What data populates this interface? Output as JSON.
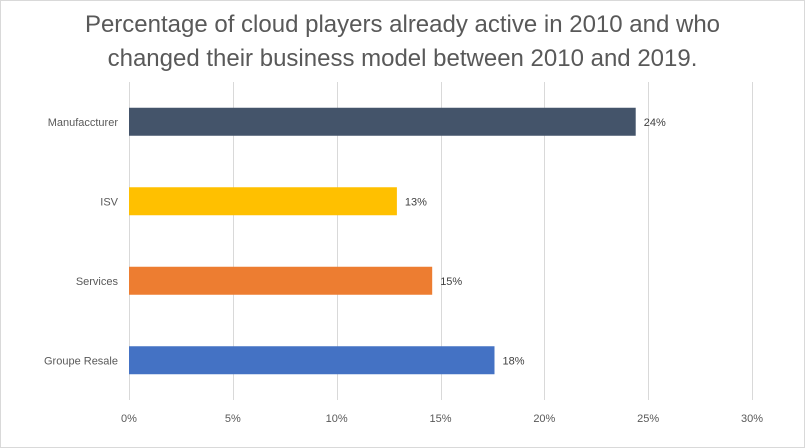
{
  "chart_data": {
    "type": "bar",
    "orientation": "horizontal",
    "title": "Percentage of cloud players already active in 2010 and who\nchanged their business model between 2010 and 2019.",
    "categories": [
      "Manufaccturer",
      "ISV",
      "Services",
      "Groupe Resale"
    ],
    "values": [
      24.4,
      12.9,
      14.6,
      17.6
    ],
    "data_labels": [
      "24%",
      "13%",
      "15%",
      "18%"
    ],
    "colors": [
      "#44546a",
      "#ffc000",
      "#ed7d31",
      "#4472c4"
    ],
    "xlim": [
      0,
      30
    ],
    "x_ticks": [
      0,
      5,
      10,
      15,
      20,
      25,
      30
    ],
    "x_tick_labels": [
      "0%",
      "5%",
      "10%",
      "15%",
      "20%",
      "25%",
      "30%"
    ],
    "grid": "vertical",
    "grid_color": "#d9d9d9",
    "legend": "none"
  }
}
